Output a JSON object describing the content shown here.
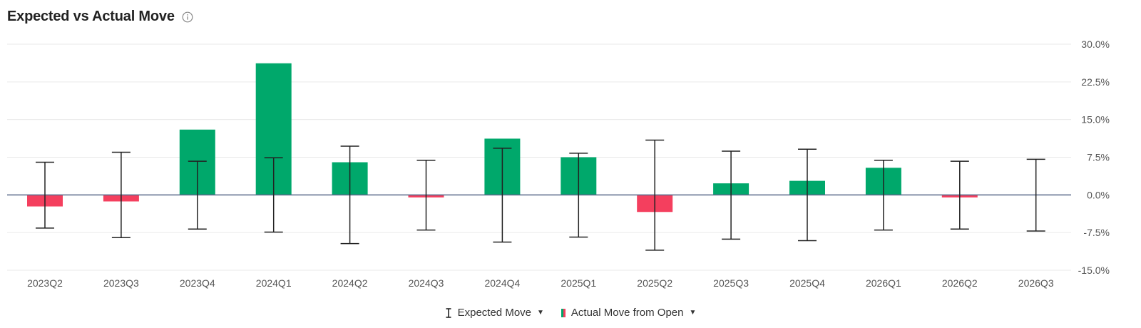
{
  "header": {
    "title": "Expected vs Actual Move",
    "info_icon": "info-circle-icon"
  },
  "colors": {
    "positive": "#00a86b",
    "negative": "#f43f5e",
    "errbar": "#222222",
    "zero_line": "#5a6a8a",
    "grid": "#e9e9e9",
    "tick_text": "#555555"
  },
  "legend": {
    "expected_label": "Expected Move",
    "actual_label": "Actual Move from Open"
  },
  "chart_data": {
    "type": "bar",
    "title": "Expected vs Actual Move",
    "categories": [
      "2023Q2",
      "2023Q3",
      "2023Q4",
      "2024Q1",
      "2024Q2",
      "2024Q3",
      "2024Q4",
      "2025Q1",
      "2025Q2",
      "2025Q3",
      "2025Q4",
      "2026Q1",
      "2026Q2",
      "2026Q3"
    ],
    "series": [
      {
        "name": "Actual Move from Open",
        "kind": "bar",
        "values": [
          -2.3,
          -1.3,
          13.0,
          26.2,
          6.5,
          -0.5,
          11.2,
          7.5,
          -3.4,
          2.3,
          2.8,
          5.4,
          -0.5,
          null
        ]
      },
      {
        "name": "Expected Move",
        "kind": "errorbar",
        "upper": [
          6.5,
          8.5,
          6.7,
          7.4,
          9.7,
          6.9,
          9.3,
          8.3,
          10.9,
          8.7,
          9.1,
          6.9,
          6.7,
          7.1
        ],
        "lower": [
          -6.6,
          -8.5,
          -6.8,
          -7.4,
          -9.7,
          -7.0,
          -9.4,
          -8.4,
          -11.0,
          -8.8,
          -9.1,
          -7.0,
          -6.8,
          -7.2
        ]
      }
    ],
    "yticks": [
      "30.0%",
      "22.5%",
      "15.0%",
      "7.5%",
      "0.0%",
      "-7.5%",
      "-15.0%"
    ],
    "ytick_values": [
      30,
      22.5,
      15,
      7.5,
      0,
      -7.5,
      -15
    ],
    "ylim": [
      -15,
      30
    ],
    "xlabel": "",
    "ylabel": "",
    "grid": true,
    "legend_position": "bottom-center"
  }
}
